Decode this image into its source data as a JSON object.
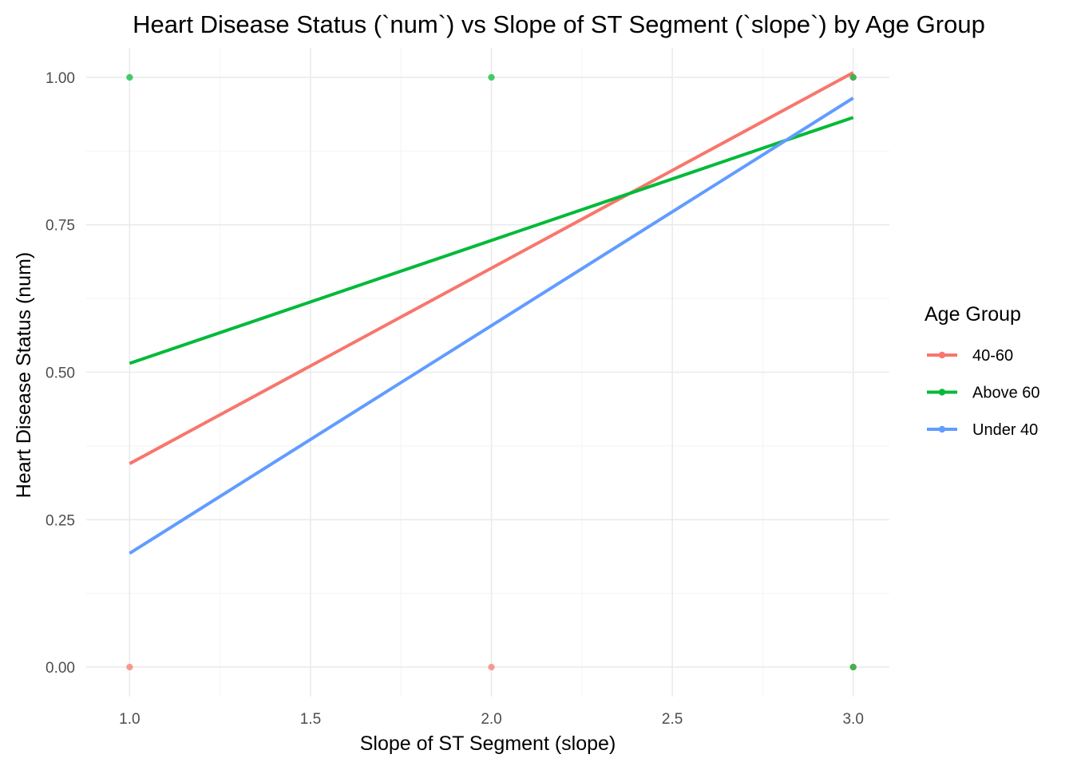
{
  "chart_data": {
    "type": "scatter",
    "title": "Heart Disease Status (`num`) vs Slope of ST Segment (`slope`) by Age Group",
    "xlabel": "Slope of ST Segment (slope)",
    "ylabel": "Heart Disease Status (num)",
    "xlim": [
      0.88,
      3.1
    ],
    "ylim": [
      -0.05,
      1.05
    ],
    "x_ticks": [
      1.0,
      1.5,
      2.0,
      2.5,
      3.0
    ],
    "x_tick_labels": [
      "1.0",
      "1.5",
      "2.0",
      "2.5",
      "3.0"
    ],
    "y_ticks": [
      0.0,
      0.25,
      0.5,
      0.75,
      1.0
    ],
    "y_tick_labels": [
      "0.00",
      "0.25",
      "0.50",
      "0.75",
      "1.00"
    ],
    "grid": true,
    "legend": {
      "title": "Age Group",
      "position": "right"
    },
    "series": [
      {
        "name": "40-60",
        "color": "#F8766D",
        "points": [
          [
            1,
            0
          ],
          [
            2,
            0
          ],
          [
            3,
            0
          ],
          [
            3,
            1
          ]
        ],
        "fit_line": {
          "x": [
            1,
            3
          ],
          "y": [
            0.345,
            1.008
          ]
        }
      },
      {
        "name": "Above 60",
        "color": "#00BA38",
        "points": [
          [
            1,
            1
          ],
          [
            2,
            1
          ],
          [
            3,
            1
          ],
          [
            3,
            0
          ]
        ],
        "fit_line": {
          "x": [
            1,
            3
          ],
          "y": [
            0.515,
            0.932
          ]
        }
      },
      {
        "name": "Under 40",
        "color": "#619CFF",
        "points": [],
        "fit_line": {
          "x": [
            1,
            3
          ],
          "y": [
            0.193,
            0.965
          ]
        }
      }
    ]
  }
}
